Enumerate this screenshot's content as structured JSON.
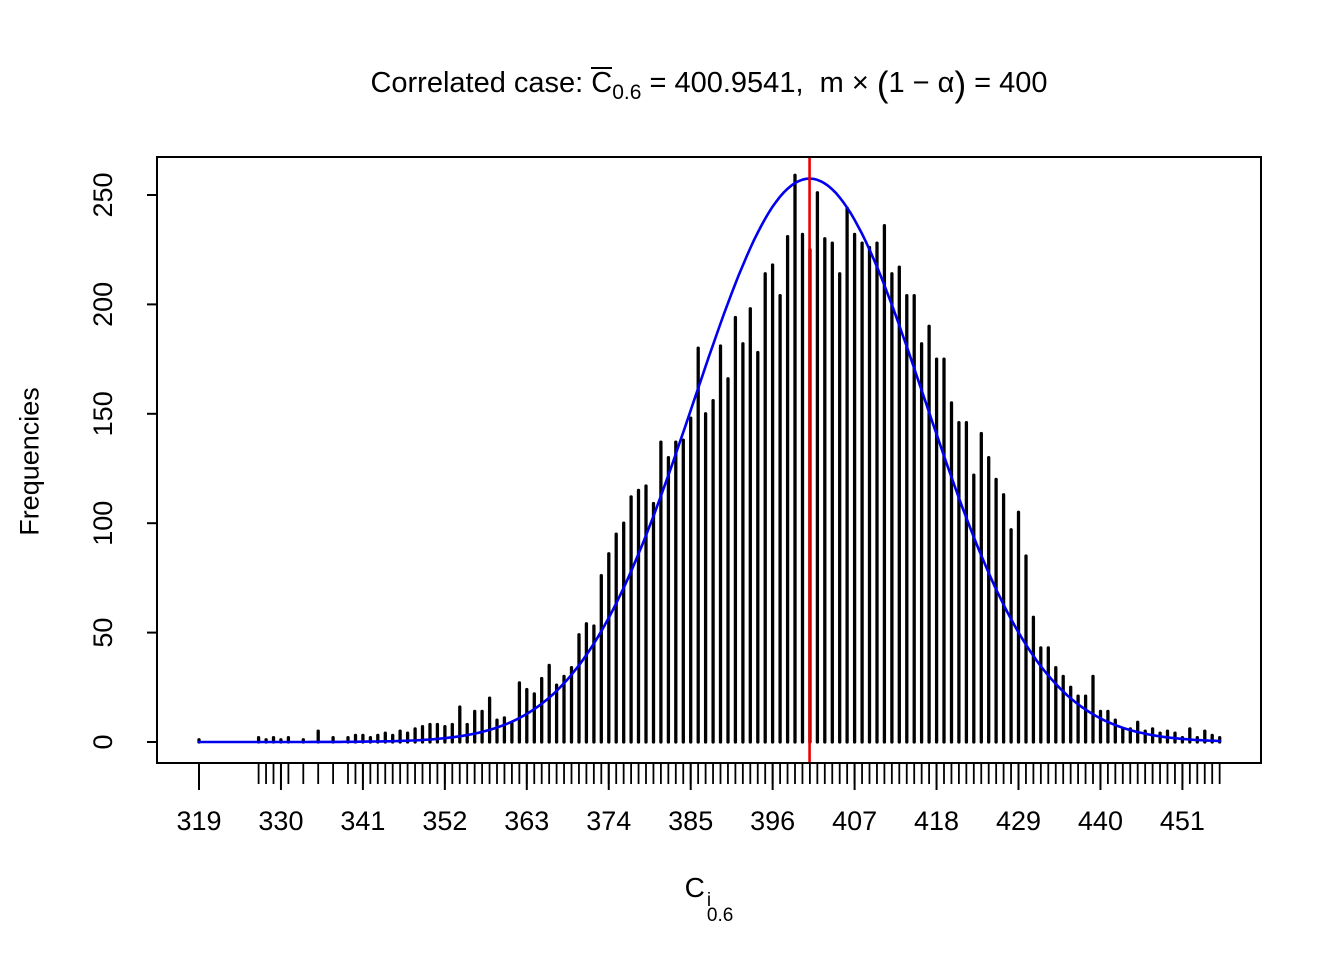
{
  "title": {
    "plain": "Correlated case: C̅0.6 = 400.9541, m × (1 − α) = 400",
    "parts": [
      {
        "text": "Correlated case: "
      },
      {
        "text": "C",
        "style": "overline"
      },
      {
        "text": "0.6",
        "style": "sub"
      },
      {
        "text": " = 400.9541,  m × "
      },
      {
        "text": "(",
        "style": "paren"
      },
      {
        "text": "1 − α"
      },
      {
        "text": ")",
        "style": "paren"
      },
      {
        "text": " = 400"
      }
    ]
  },
  "y_axis": {
    "label": "Frequencies",
    "ticks": [
      0,
      50,
      100,
      150,
      200,
      250
    ]
  },
  "x_axis": {
    "label": {
      "base": "C",
      "sup": "i",
      "sub": "0.6"
    },
    "ticks": [
      319,
      330,
      341,
      352,
      363,
      374,
      385,
      396,
      407,
      418,
      429,
      440,
      451
    ]
  },
  "chart_data": {
    "type": "bar",
    "subtype": "spike-histogram-of-discrete-values",
    "title": "Correlated case: mean C_0.6 = 400.9541, m x (1 - alpha) = 400",
    "xlabel": "C^i_0.6",
    "ylabel": "Frequencies",
    "xlim": [
      313,
      462
    ],
    "ylim": [
      0,
      267
    ],
    "grid": false,
    "x_values": [
      319,
      320,
      321,
      322,
      323,
      324,
      325,
      326,
      327,
      328,
      329,
      330,
      331,
      332,
      333,
      334,
      335,
      336,
      337,
      338,
      339,
      340,
      341,
      342,
      343,
      344,
      345,
      346,
      347,
      348,
      349,
      350,
      351,
      352,
      353,
      354,
      355,
      356,
      357,
      358,
      359,
      360,
      361,
      362,
      363,
      364,
      365,
      366,
      367,
      368,
      369,
      370,
      371,
      372,
      373,
      374,
      375,
      376,
      377,
      378,
      379,
      380,
      381,
      382,
      383,
      384,
      385,
      386,
      387,
      388,
      389,
      390,
      391,
      392,
      393,
      394,
      395,
      396,
      397,
      398,
      399,
      400,
      401,
      402,
      403,
      404,
      405,
      406,
      407,
      408,
      409,
      410,
      411,
      412,
      413,
      414,
      415,
      416,
      417,
      418,
      419,
      420,
      421,
      422,
      423,
      424,
      425,
      426,
      427,
      428,
      429,
      430,
      431,
      432,
      433,
      434,
      435,
      436,
      437,
      438,
      439,
      440,
      441,
      442,
      443,
      444,
      445,
      446,
      447,
      448,
      449,
      450,
      451,
      452,
      453,
      454,
      455,
      456
    ],
    "frequencies": [
      1,
      0,
      0,
      0,
      0,
      0,
      0,
      0,
      2,
      1,
      2,
      1,
      2,
      0,
      1,
      0,
      5,
      0,
      2,
      0,
      2,
      3,
      3,
      2,
      3,
      4,
      3,
      5,
      4,
      6,
      7,
      8,
      8,
      7,
      8,
      16,
      8,
      14,
      14,
      20,
      10,
      11,
      9,
      27,
      24,
      22,
      29,
      35,
      26,
      30,
      34,
      49,
      54,
      53,
      76,
      86,
      95,
      100,
      112,
      115,
      117,
      109,
      137,
      130,
      137,
      138,
      148,
      180,
      150,
      156,
      181,
      166,
      194,
      182,
      198,
      178,
      214,
      218,
      204,
      231,
      259,
      232,
      225,
      251,
      230,
      228,
      214,
      244,
      232,
      228,
      226,
      228,
      236,
      214,
      217,
      204,
      204,
      182,
      190,
      175,
      175,
      155,
      146,
      146,
      122,
      141,
      130,
      120,
      113,
      97,
      105,
      85,
      57,
      43,
      43,
      34,
      30,
      25,
      21,
      21,
      30,
      14,
      14,
      10,
      6,
      6,
      9,
      5,
      6,
      4,
      5,
      4,
      2,
      6,
      2,
      5,
      3,
      2
    ],
    "overlay_curve": {
      "type": "normal_density_fit",
      "mean": 400.9541,
      "sd": 15.5,
      "peak": 257.5,
      "x_from": 319,
      "x_to": 456.4,
      "color": "#0000ee"
    },
    "mean_line": {
      "x": 400.9541,
      "color": "#ee0000"
    },
    "colors": {
      "spikes": "#000000",
      "frame": "#000000"
    }
  }
}
